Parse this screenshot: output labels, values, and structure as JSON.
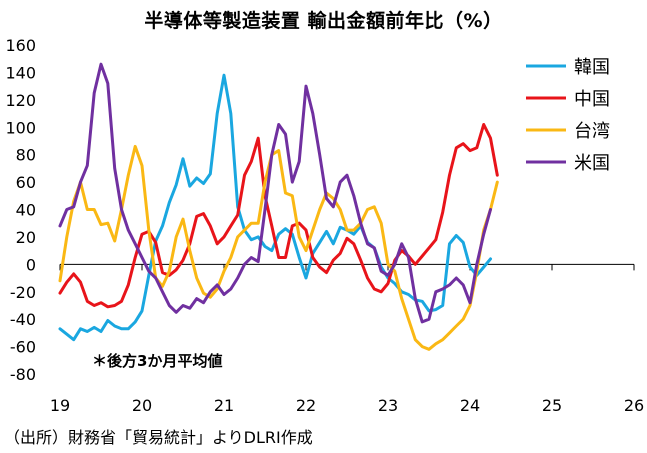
{
  "chart_data": {
    "type": "line",
    "title": "半導体等製造装置 輸出金額前年比（%）",
    "note": "＊後方3か月平均値",
    "source": "（出所）財務省「貿易統計」よりDLRI作成",
    "xlabel": "",
    "ylabel": "",
    "ylim": [
      -80,
      160
    ],
    "yticks": [
      -80,
      -60,
      -40,
      -20,
      0,
      20,
      40,
      60,
      80,
      100,
      120,
      140,
      160
    ],
    "xlim": [
      2019,
      2026
    ],
    "xticks": [
      2019,
      2020,
      2021,
      2022,
      2023,
      2024,
      2025,
      2026
    ],
    "xtick_labels": [
      "19",
      "20",
      "21",
      "22",
      "23",
      "24",
      "25",
      "26"
    ],
    "legend_position": "top-right",
    "series": [
      {
        "name": "韓国",
        "color": "#1aa7e0",
        "start": 2019.0,
        "values": [
          -47,
          -51,
          -55,
          -47,
          -49,
          -46,
          -49,
          -41,
          -45,
          -47,
          -47,
          -42,
          -34,
          -8,
          17,
          28,
          45,
          58,
          77,
          57,
          63,
          59,
          66,
          110,
          138,
          110,
          42,
          25,
          18,
          20,
          13,
          10,
          22,
          26,
          22,
          5,
          -10,
          8,
          16,
          24,
          15,
          27,
          25,
          22,
          28,
          16,
          12,
          -2,
          -10,
          -14,
          -20,
          -22,
          -26,
          -27,
          -34,
          -33,
          -30,
          15,
          21,
          16,
          -2,
          -8,
          -2,
          4
        ]
      },
      {
        "name": "中国",
        "color": "#e8141a",
        "start": 2019.0,
        "values": [
          -21,
          -13,
          -7,
          -13,
          -27,
          -30,
          -28,
          -31,
          -30,
          -27,
          -15,
          5,
          22,
          24,
          16,
          -6,
          -8,
          -4,
          3,
          15,
          35,
          37,
          28,
          15,
          20,
          28,
          36,
          65,
          75,
          92,
          50,
          28,
          5,
          5,
          28,
          30,
          25,
          5,
          -2,
          -6,
          3,
          8,
          19,
          15,
          3,
          -10,
          -18,
          -20,
          -14,
          3,
          10,
          6,
          0,
          6,
          12,
          18,
          38,
          65,
          85,
          88,
          83,
          85,
          102,
          92,
          65
        ]
      },
      {
        "name": "台湾",
        "color": "#fab814",
        "start": 2019.0,
        "values": [
          -12,
          20,
          46,
          60,
          40,
          40,
          29,
          30,
          17,
          40,
          65,
          86,
          72,
          25,
          -10,
          -16,
          -5,
          20,
          33,
          10,
          -10,
          -21,
          -24,
          -18,
          -5,
          5,
          20,
          25,
          30,
          30,
          60,
          80,
          83,
          52,
          50,
          20,
          10,
          25,
          40,
          52,
          48,
          40,
          25,
          25,
          30,
          40,
          42,
          30,
          0,
          -5,
          -25,
          -40,
          -55,
          -60,
          -62,
          -58,
          -55,
          -50,
          -45,
          -40,
          -30,
          -5,
          25,
          40,
          60
        ]
      },
      {
        "name": "米国",
        "color": "#7030a0",
        "start": 2019.0,
        "values": [
          28,
          40,
          42,
          60,
          72,
          125,
          146,
          132,
          70,
          40,
          25,
          15,
          5,
          -5,
          -10,
          -20,
          -30,
          -35,
          -30,
          -32,
          -25,
          -28,
          -20,
          -15,
          -22,
          -18,
          -10,
          0,
          5,
          2,
          40,
          80,
          102,
          95,
          60,
          75,
          130,
          110,
          80,
          48,
          42,
          60,
          65,
          50,
          30,
          15,
          12,
          -5,
          -8,
          0,
          15,
          5,
          -25,
          -42,
          -40,
          -20,
          -18,
          -15,
          -10,
          -15,
          -28,
          0,
          22,
          40
        ]
      }
    ]
  }
}
